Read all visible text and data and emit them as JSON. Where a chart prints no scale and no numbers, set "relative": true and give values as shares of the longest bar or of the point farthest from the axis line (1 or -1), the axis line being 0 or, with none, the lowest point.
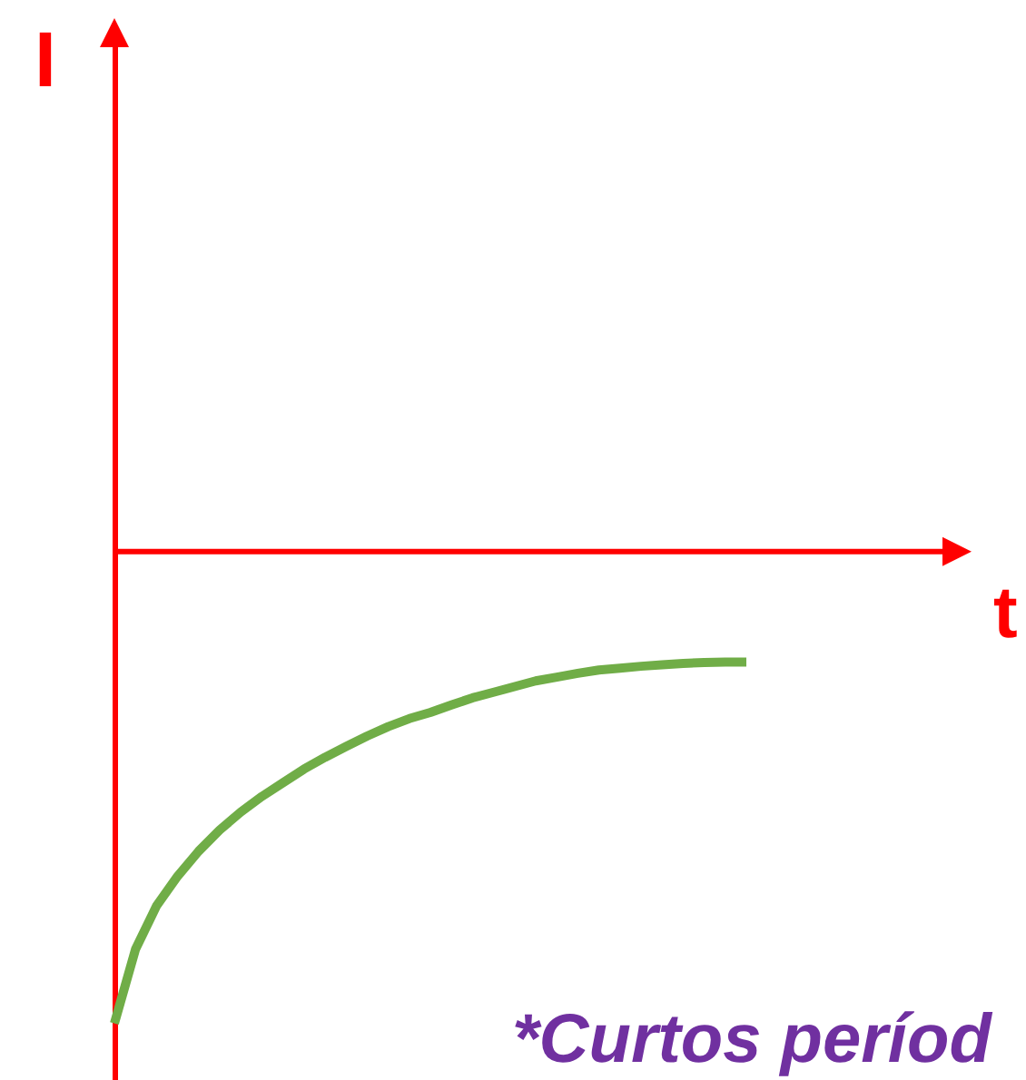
{
  "chart_data": {
    "type": "line",
    "relative": true,
    "xlabel": "t",
    "annotations": [
      "I",
      "*Curtos períod"
    ],
    "categories": [
      null,
      null,
      null,
      null,
      null,
      null,
      null,
      null,
      null,
      null,
      null,
      null,
      null,
      null,
      null,
      null,
      null,
      null,
      null,
      null,
      null,
      null,
      null,
      null,
      null,
      null,
      null,
      null,
      null,
      null,
      null,
      null,
      null,
      null,
      null,
      null,
      null,
      null,
      null,
      null,
      null
    ],
    "series": [
      {
        "color": "#70ad47",
        "values": [
          -1,
          -0.843,
          -0.751,
          -0.688,
          -0.635,
          -0.59,
          -0.552,
          -0.519,
          -0.49,
          -0.461,
          -0.436,
          -0.413,
          -0.391,
          -0.371,
          -0.354,
          -0.341,
          -0.325,
          -0.31,
          -0.298,
          -0.286,
          -0.274,
          -0.266,
          -0.258,
          -0.251,
          -0.247,
          -0.243,
          -0.24,
          -0.237,
          -0.235,
          -0.234,
          -0.234,
          null,
          null,
          null,
          null,
          null,
          null,
          null,
          null,
          null,
          null
        ]
      }
    ],
    "marker": "none",
    "line_style": "solid",
    "grid": false,
    "tick_labels": false
  }
}
